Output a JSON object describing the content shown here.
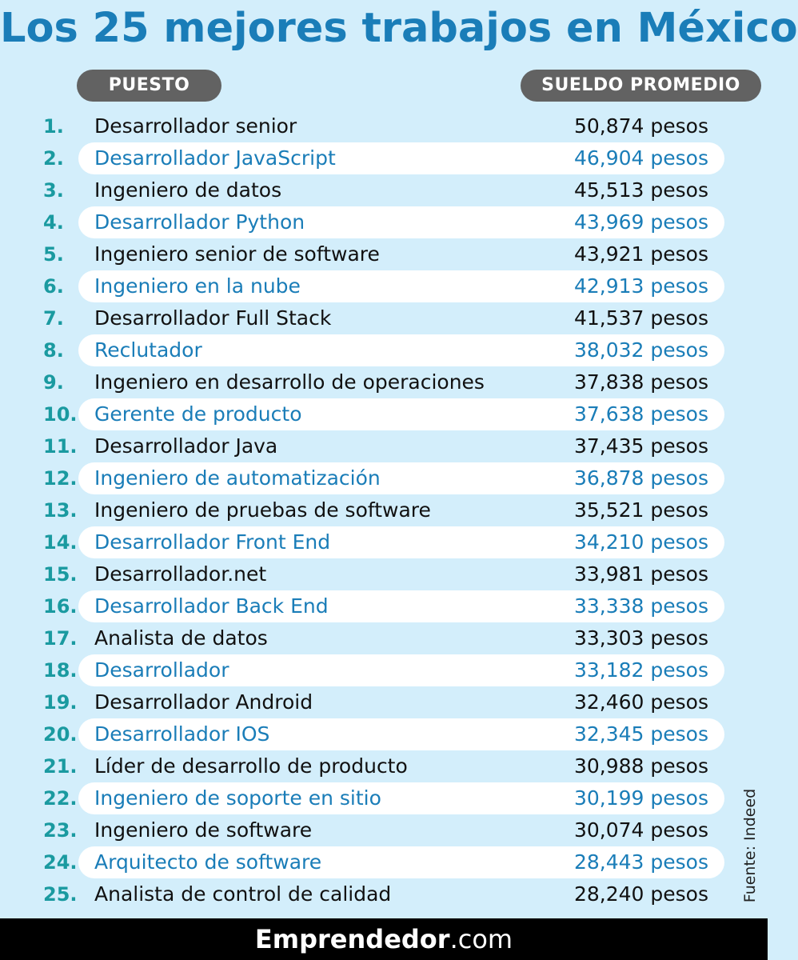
{
  "title": "Los 25 mejores trabajos en México",
  "header": {
    "left_label": "PUESTO",
    "right_label": "SUELDO PROMEDIO"
  },
  "rows": [
    {
      "rank": "1.",
      "job": "Desarrollador senior",
      "salary": "50,874 pesos"
    },
    {
      "rank": "2.",
      "job": "Desarrollador JavaScript",
      "salary": "46,904 pesos"
    },
    {
      "rank": "3.",
      "job": "Ingeniero de datos",
      "salary": "45,513 pesos"
    },
    {
      "rank": "4.",
      "job": "Desarrollador Python",
      "salary": "43,969 pesos"
    },
    {
      "rank": "5.",
      "job": "Ingeniero senior de software",
      "salary": "43,921 pesos"
    },
    {
      "rank": "6.",
      "job": "Ingeniero en la nube",
      "salary": "42,913 pesos"
    },
    {
      "rank": "7.",
      "job": "Desarrollador Full Stack",
      "salary": "41,537 pesos"
    },
    {
      "rank": "8.",
      "job": "Reclutador",
      "salary": "38,032 pesos"
    },
    {
      "rank": "9.",
      "job": "Ingeniero en desarrollo de operaciones",
      "salary": "37,838 pesos"
    },
    {
      "rank": "10.",
      "job": "Gerente de producto",
      "salary": "37,638 pesos"
    },
    {
      "rank": "11.",
      "job": "Desarrollador Java",
      "salary": "37,435 pesos"
    },
    {
      "rank": "12.",
      "job": "Ingeniero de automatización",
      "salary": "36,878 pesos"
    },
    {
      "rank": "13.",
      "job": "Ingeniero de pruebas de software",
      "salary": "35,521 pesos"
    },
    {
      "rank": "14.",
      "job": "Desarrollador Front End",
      "salary": "34,210 pesos"
    },
    {
      "rank": "15.",
      "job": "Desarrollador.net",
      "salary": "33,981 pesos"
    },
    {
      "rank": "16.",
      "job": "Desarrollador Back End",
      "salary": "33,338 pesos"
    },
    {
      "rank": "17.",
      "job": "Analista de datos",
      "salary": "33,303 pesos"
    },
    {
      "rank": "18.",
      "job": "Desarrollador",
      "salary": "33,182 pesos"
    },
    {
      "rank": "19.",
      "job": "Desarrollador Android",
      "salary": "32,460 pesos"
    },
    {
      "rank": "20.",
      "job": "Desarrollador IOS",
      "salary": "32,345 pesos"
    },
    {
      "rank": "21.",
      "job": "Líder de desarrollo de producto",
      "salary": "30,988 pesos"
    },
    {
      "rank": "22.",
      "job": "Ingeniero de soporte en sitio",
      "salary": "30,199 pesos"
    },
    {
      "rank": "23.",
      "job": "Ingeniero de software",
      "salary": "30,074 pesos"
    },
    {
      "rank": "24.",
      "job": "Arquitecto de software",
      "salary": "28,443 pesos"
    },
    {
      "rank": "25.",
      "job": "Analista de control de calidad",
      "salary": "28,240 pesos"
    }
  ],
  "source": "Fuente: Indeed",
  "footer": {
    "brand": "Emprendedor",
    "domain": ".com"
  },
  "colors": {
    "background": "#d3eefb",
    "title": "#1a7db8",
    "rank": "#1a9aa0",
    "highlight_text": "#1a7db8",
    "pill": "#626262",
    "footer": "#000000"
  }
}
